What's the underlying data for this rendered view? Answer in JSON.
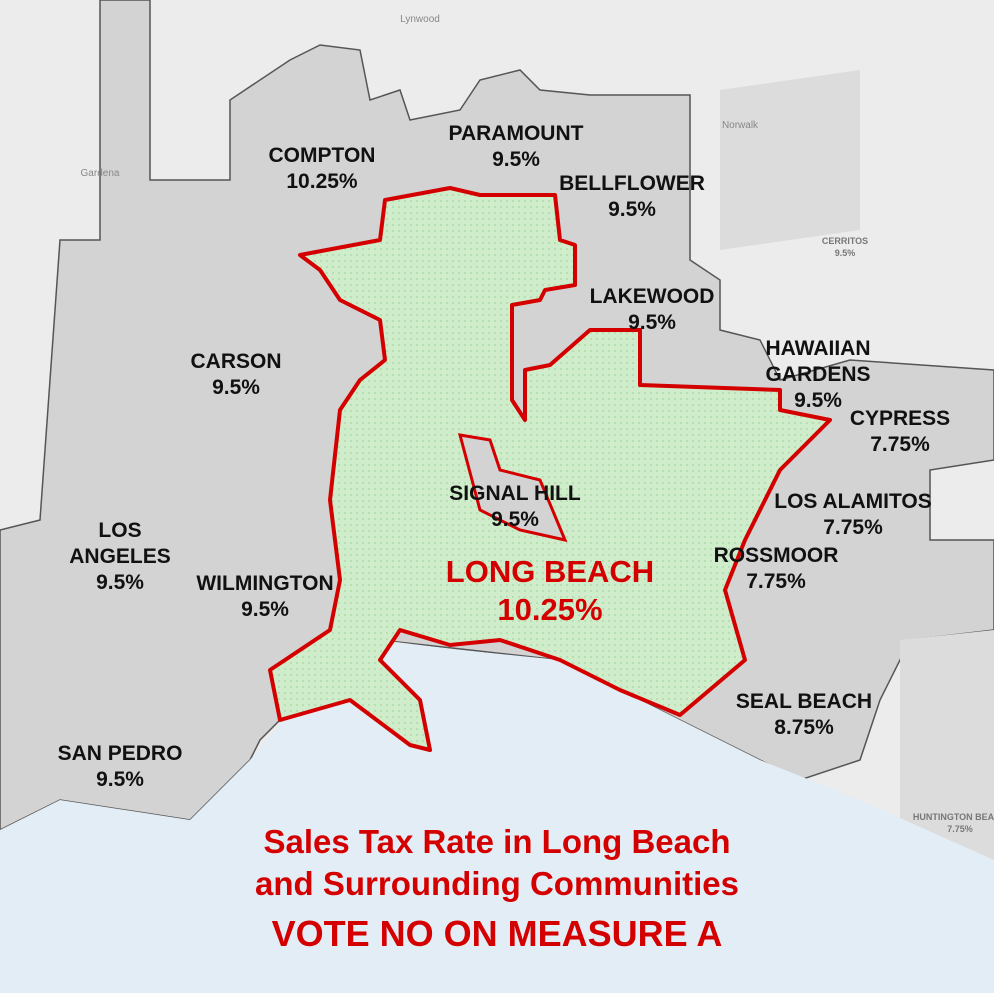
{
  "title": {
    "lines": [
      "Sales Tax Rate in Long Beach",
      "and Surrounding Communities"
    ],
    "slogan": "VOTE NO ON MEASURE A"
  },
  "regions": [
    {
      "name_lines": [
        "COMPTON"
      ],
      "rate": "10.25%"
    },
    {
      "name_lines": [
        "PARAMOUNT"
      ],
      "rate": "9.5%"
    },
    {
      "name_lines": [
        "BELLFLOWER"
      ],
      "rate": "9.5%"
    },
    {
      "name_lines": [
        "LAKEWOOD"
      ],
      "rate": "9.5%"
    },
    {
      "name_lines": [
        "HAWAIIAN",
        "GARDENS"
      ],
      "rate": "9.5%"
    },
    {
      "name_lines": [
        "CYPRESS"
      ],
      "rate": "7.75%"
    },
    {
      "name_lines": [
        "CARSON"
      ],
      "rate": "9.5%"
    },
    {
      "name_lines": [
        "SIGNAL HILL"
      ],
      "rate": "9.5%"
    },
    {
      "name_lines": [
        "LOS ALAMITOS"
      ],
      "rate": "7.75%"
    },
    {
      "name_lines": [
        "ROSSMOOR"
      ],
      "rate": "7.75%"
    },
    {
      "name_lines": [
        "LOS",
        "ANGELES"
      ],
      "rate": "9.5%"
    },
    {
      "name_lines": [
        "WILMINGTON"
      ],
      "rate": "9.5%"
    },
    {
      "name_lines": [
        "SEAL BEACH"
      ],
      "rate": "8.75%"
    },
    {
      "name_lines": [
        "SAN PEDRO"
      ],
      "rate": "9.5%"
    }
  ],
  "highlight": {
    "name_lines": [
      "LONG BEACH"
    ],
    "rate": "10.25%"
  },
  "background_labels": [
    {
      "name": "CERRITOS",
      "rate": "9.5%"
    },
    {
      "name": "HUNTINGTON BEACH",
      "rate": "7.75%"
    },
    {
      "name": "Lynwood"
    },
    {
      "name": "Norwalk"
    },
    {
      "name": "Gardena"
    }
  ]
}
